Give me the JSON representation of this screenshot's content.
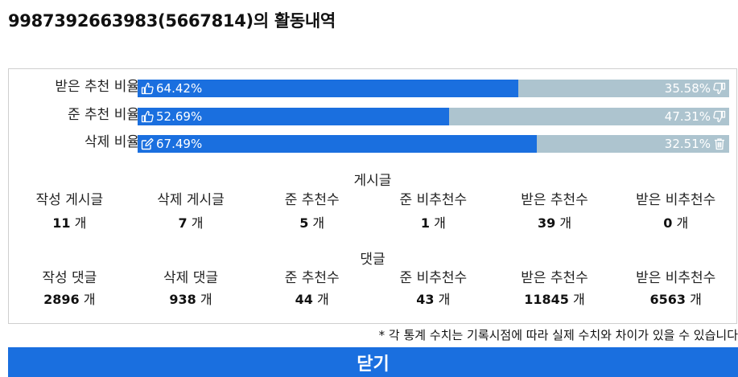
{
  "title": "9987392663983(5667814)의 활동내역",
  "bars": [
    {
      "label": "받은 추천 비율",
      "left_pct": 64.42,
      "left_text": "64.42%",
      "right_text": "35.58%",
      "left_icon": "thumbs-up-icon",
      "right_icon": "thumbs-down-icon"
    },
    {
      "label": "준 추천 비율",
      "left_pct": 52.69,
      "left_text": "52.69%",
      "right_text": "47.31%",
      "left_icon": "thumbs-up-icon",
      "right_icon": "thumbs-down-icon"
    },
    {
      "label": "삭제 비율",
      "left_pct": 67.49,
      "left_text": "67.49%",
      "right_text": "32.51%",
      "left_icon": "edit-icon",
      "right_icon": "trash-icon"
    }
  ],
  "colors": {
    "accent": "#1a6fdf",
    "track": "#adc4cf"
  },
  "posts": {
    "title": "게시글",
    "stats": [
      {
        "label": "작성 게시글",
        "value": "11",
        "unit": "개"
      },
      {
        "label": "삭제 게시글",
        "value": "7",
        "unit": "개"
      },
      {
        "label": "준 추천수",
        "value": "5",
        "unit": "개"
      },
      {
        "label": "준 비추천수",
        "value": "1",
        "unit": "개"
      },
      {
        "label": "받은 추천수",
        "value": "39",
        "unit": "개"
      },
      {
        "label": "받은 비추천수",
        "value": "0",
        "unit": "개"
      }
    ]
  },
  "comments": {
    "title": "댓글",
    "stats": [
      {
        "label": "작성 댓글",
        "value": "2896",
        "unit": "개"
      },
      {
        "label": "삭제 댓글",
        "value": "938",
        "unit": "개"
      },
      {
        "label": "준 추천수",
        "value": "44",
        "unit": "개"
      },
      {
        "label": "준 비추천수",
        "value": "43",
        "unit": "개"
      },
      {
        "label": "받은 추천수",
        "value": "11845",
        "unit": "개"
      },
      {
        "label": "받은 비추천수",
        "value": "6563",
        "unit": "개"
      }
    ]
  },
  "note": "* 각 통계 수치는 기록시점에 따라 실제 수치와 차이가 있을 수 있습니다",
  "close_label": "닫기"
}
